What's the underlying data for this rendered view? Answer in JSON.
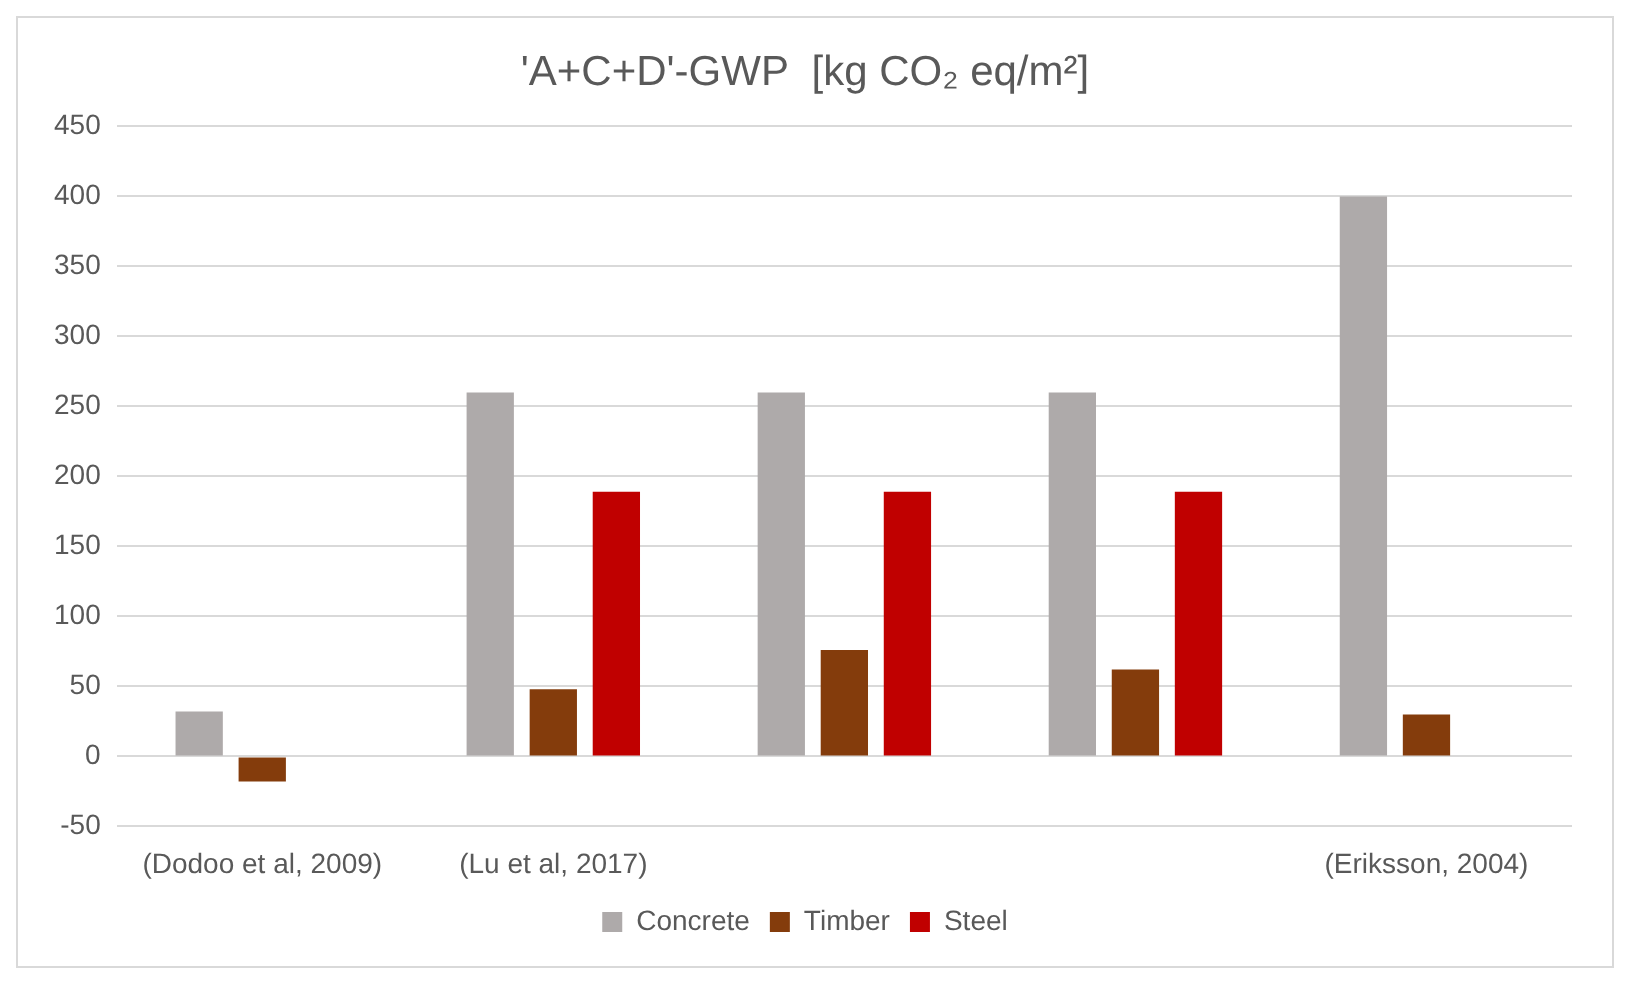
{
  "chart_data": {
    "type": "bar",
    "title": "'A+C+D'-GWP  [kg CO₂ eq/m²]",
    "categories": [
      "(Dodoo et al, 2009)",
      "(Lu et al, 2017)",
      null,
      null,
      "(Eriksson, 2004)"
    ],
    "series": [
      {
        "name": "Concrete",
        "color": "#aeaaaa",
        "values": [
          32,
          260,
          260,
          260,
          400
        ]
      },
      {
        "name": "Timber",
        "color": "#843c0c",
        "values": [
          -18,
          48,
          76,
          62,
          30
        ]
      },
      {
        "name": "Steel",
        "color": "#c00000",
        "values": [
          null,
          189,
          189,
          189,
          null
        ]
      }
    ],
    "ylim": [
      -50,
      450
    ],
    "yticks": [
      -50,
      0,
      50,
      100,
      150,
      200,
      250,
      300,
      350,
      400,
      450
    ],
    "grid": "y",
    "legend": "bottom"
  }
}
